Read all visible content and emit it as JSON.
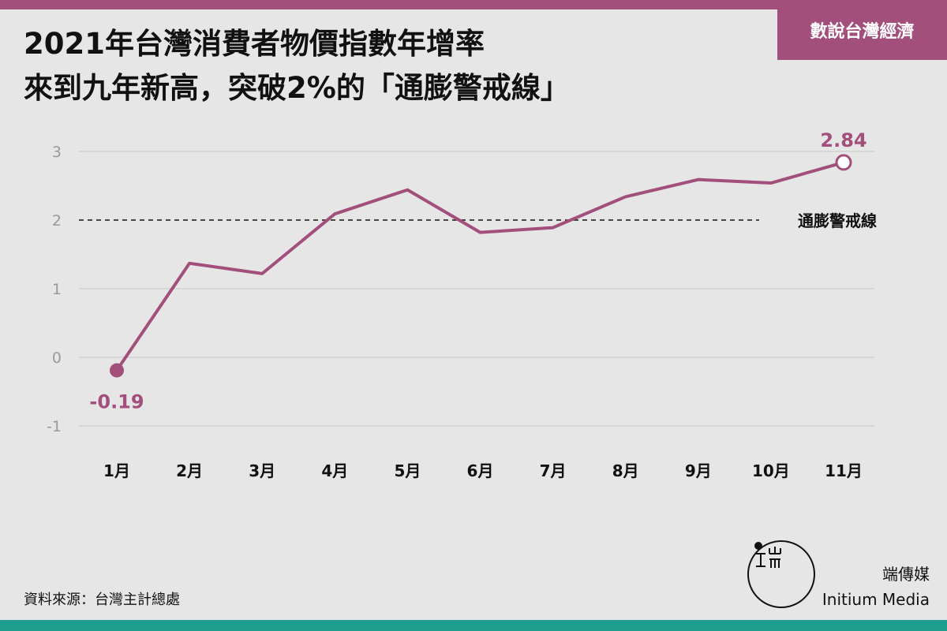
{
  "header": {
    "title_line1": "2021年台灣消費者物價指數年增率",
    "title_line2": "來到九年新高，突破2%的「通膨警戒線」",
    "series_tag": "數說台灣經濟"
  },
  "chart_data": {
    "type": "line",
    "categories": [
      "1月",
      "2月",
      "3月",
      "4月",
      "5月",
      "6月",
      "7月",
      "8月",
      "9月",
      "10月",
      "11月"
    ],
    "values": [
      -0.19,
      1.37,
      1.22,
      2.09,
      2.44,
      1.82,
      1.89,
      2.34,
      2.59,
      2.54,
      2.84
    ],
    "y_ticks": [
      "3",
      "2",
      "1",
      "0",
      "-1"
    ],
    "ylim": [
      -1,
      3
    ],
    "grid": true,
    "reference_line": {
      "value": 2,
      "label": "通膨警戒線"
    },
    "first_label": "-0.19",
    "last_label": "2.84",
    "colors": {
      "series": "#a24f7c",
      "grid": "#c8c8c8",
      "axis_text": "#999999",
      "reference": "#111111"
    }
  },
  "footer": {
    "source": "資料來源：台灣主計總處",
    "brand_cn": "端傳媒",
    "brand_en": "Initium Media"
  }
}
